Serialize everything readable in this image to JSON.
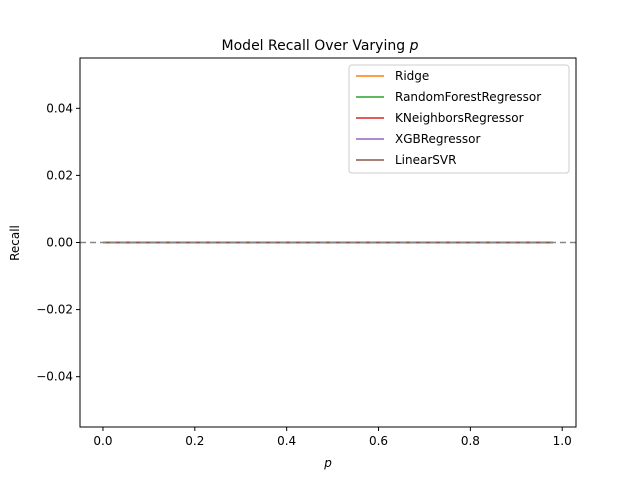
{
  "chart_data": {
    "type": "line",
    "title": "Model Recall Over Varying",
    "title_var": "p",
    "xlabel": "p",
    "ylabel": "Recall",
    "xlim": [
      -0.05,
      1.03
    ],
    "ylim": [
      -0.055,
      0.055
    ],
    "xticks": [
      0.0,
      0.2,
      0.4,
      0.6,
      0.8,
      1.0
    ],
    "xtick_labels": [
      "0.0",
      "0.2",
      "0.4",
      "0.6",
      "0.8",
      "1.0"
    ],
    "yticks": [
      0.04,
      0.02,
      0.0,
      -0.02,
      -0.04
    ],
    "ytick_labels": [
      "0.04",
      "0.02",
      "0.00",
      "−0.02",
      "−0.04"
    ],
    "grid": false,
    "legend_position": "upper right",
    "x": [
      0.0,
      0.1,
      0.2,
      0.3,
      0.4,
      0.5,
      0.6,
      0.7,
      0.8,
      0.9,
      0.98
    ],
    "baseline": {
      "y": 0.0,
      "style": "dashed",
      "color": "#888888"
    },
    "series": [
      {
        "name": "Ridge",
        "color": "#ff7f0e",
        "values": [
          0,
          0,
          0,
          0,
          0,
          0,
          0,
          0,
          0,
          0,
          0
        ]
      },
      {
        "name": "RandomForestRegressor",
        "color": "#2ca02c",
        "values": [
          0,
          0,
          0,
          0,
          0,
          0,
          0,
          0,
          0,
          0,
          0
        ]
      },
      {
        "name": "KNeighborsRegressor",
        "color": "#d62728",
        "values": [
          0,
          0,
          0,
          0,
          0,
          0,
          0,
          0,
          0,
          0,
          0
        ]
      },
      {
        "name": "XGBRegressor",
        "color": "#9467bd",
        "values": [
          0,
          0,
          0,
          0,
          0,
          0,
          0,
          0,
          0,
          0,
          0
        ]
      },
      {
        "name": "LinearSVR",
        "color": "#8c564b",
        "values": [
          0,
          0,
          0,
          0,
          0,
          0,
          0,
          0,
          0,
          0,
          0
        ]
      }
    ]
  }
}
